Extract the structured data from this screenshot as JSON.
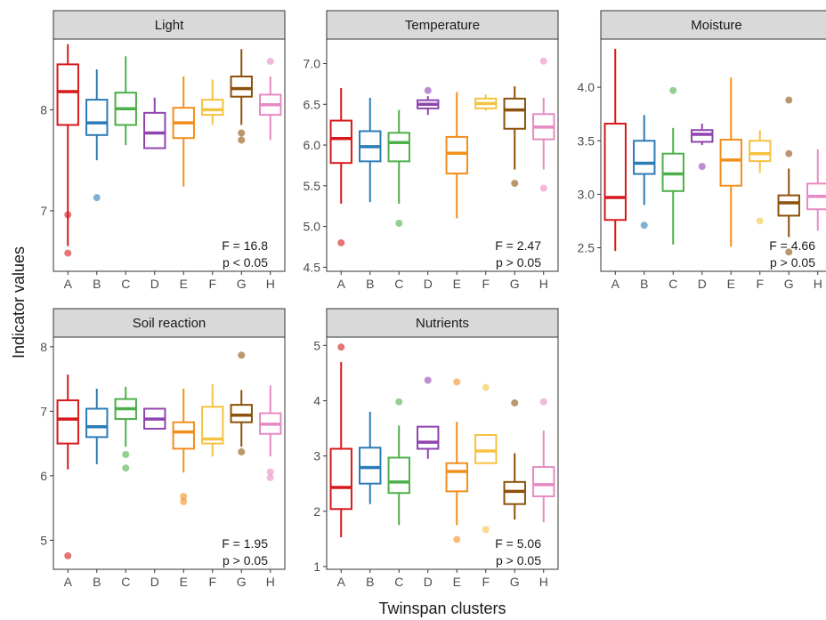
{
  "axis_titles": {
    "x": "Twinspan clusters",
    "y": "Indicator values"
  },
  "clusters": [
    "A",
    "B",
    "C",
    "D",
    "E",
    "F",
    "G",
    "H"
  ],
  "colors": [
    "#d7191c",
    "#2c7bb6",
    "#4daf4a",
    "#8e44ad",
    "#f28e1c",
    "#f5c342",
    "#8c510a",
    "#e78ac3"
  ],
  "chart_data": [
    {
      "type": "box",
      "title": "Light",
      "ylim": [
        6.4,
        8.7
      ],
      "yticks": [
        7,
        8
      ],
      "stat_line1": "F = 16.8",
      "stat_line2": "p < 0.05",
      "boxes": [
        {
          "q1": 7.85,
          "median": 8.18,
          "q3": 8.45,
          "wlo": 6.65,
          "whi": 8.65,
          "outliers": [
            6.96,
            6.58
          ]
        },
        {
          "q1": 7.75,
          "median": 7.87,
          "q3": 8.1,
          "wlo": 7.5,
          "whi": 8.4,
          "outliers": [
            7.13
          ]
        },
        {
          "q1": 7.85,
          "median": 8.01,
          "q3": 8.17,
          "wlo": 7.65,
          "whi": 8.53,
          "outliers": []
        },
        {
          "q1": 7.62,
          "median": 7.77,
          "q3": 7.97,
          "wlo": 7.62,
          "whi": 8.12,
          "outliers": []
        },
        {
          "q1": 7.72,
          "median": 7.87,
          "q3": 8.02,
          "wlo": 7.24,
          "whi": 8.33,
          "outliers": []
        },
        {
          "q1": 7.95,
          "median": 8.0,
          "q3": 8.1,
          "wlo": 7.85,
          "whi": 8.3,
          "outliers": []
        },
        {
          "q1": 8.13,
          "median": 8.21,
          "q3": 8.33,
          "wlo": 7.85,
          "whi": 8.6,
          "outliers": [
            7.77,
            7.7
          ]
        },
        {
          "q1": 7.95,
          "median": 8.05,
          "q3": 8.15,
          "wlo": 7.7,
          "whi": 8.33,
          "outliers": [
            8.48
          ]
        }
      ]
    },
    {
      "type": "box",
      "title": "Temperature",
      "ylim": [
        4.45,
        7.3
      ],
      "yticks": [
        4.5,
        5.0,
        5.5,
        6.0,
        6.5,
        7.0
      ],
      "stat_line1": "F = 2.47",
      "stat_line2": "p > 0.05",
      "boxes": [
        {
          "q1": 5.78,
          "median": 6.08,
          "q3": 6.3,
          "wlo": 5.28,
          "whi": 6.7,
          "outliers": [
            4.8
          ]
        },
        {
          "q1": 5.8,
          "median": 5.98,
          "q3": 6.17,
          "wlo": 5.3,
          "whi": 6.58,
          "outliers": []
        },
        {
          "q1": 5.8,
          "median": 6.03,
          "q3": 6.15,
          "wlo": 5.28,
          "whi": 6.43,
          "outliers": [
            5.04
          ]
        },
        {
          "q1": 6.45,
          "median": 6.5,
          "q3": 6.55,
          "wlo": 6.37,
          "whi": 6.6,
          "outliers": [
            6.67
          ]
        },
        {
          "q1": 5.65,
          "median": 5.9,
          "q3": 6.1,
          "wlo": 5.1,
          "whi": 6.65,
          "outliers": []
        },
        {
          "q1": 6.45,
          "median": 6.51,
          "q3": 6.57,
          "wlo": 6.42,
          "whi": 6.62,
          "outliers": []
        },
        {
          "q1": 6.2,
          "median": 6.43,
          "q3": 6.57,
          "wlo": 5.7,
          "whi": 6.72,
          "outliers": [
            5.53
          ]
        },
        {
          "q1": 6.07,
          "median": 6.22,
          "q3": 6.38,
          "wlo": 5.7,
          "whi": 6.58,
          "outliers": [
            7.03,
            5.47
          ]
        }
      ]
    },
    {
      "type": "box",
      "title": "Moisture",
      "ylim": [
        2.28,
        4.45
      ],
      "yticks": [
        2.5,
        3.0,
        3.5,
        4.0
      ],
      "stat_line1": "F = 4.66",
      "stat_line2": "p > 0.05",
      "boxes": [
        {
          "q1": 2.76,
          "median": 2.97,
          "q3": 3.66,
          "wlo": 2.47,
          "whi": 4.36,
          "outliers": []
        },
        {
          "q1": 3.19,
          "median": 3.29,
          "q3": 3.5,
          "wlo": 2.9,
          "whi": 3.74,
          "outliers": [
            2.71
          ]
        },
        {
          "q1": 3.03,
          "median": 3.19,
          "q3": 3.38,
          "wlo": 2.53,
          "whi": 3.62,
          "outliers": [
            3.97
          ]
        },
        {
          "q1": 3.49,
          "median": 3.56,
          "q3": 3.6,
          "wlo": 3.46,
          "whi": 3.66,
          "outliers": [
            3.26
          ]
        },
        {
          "q1": 3.08,
          "median": 3.32,
          "q3": 3.51,
          "wlo": 2.51,
          "whi": 4.09,
          "outliers": []
        },
        {
          "q1": 3.31,
          "median": 3.38,
          "q3": 3.5,
          "wlo": 3.2,
          "whi": 3.6,
          "outliers": [
            2.75
          ]
        },
        {
          "q1": 2.8,
          "median": 2.92,
          "q3": 2.99,
          "wlo": 2.6,
          "whi": 3.24,
          "outliers": [
            3.88,
            3.38,
            2.46
          ]
        },
        {
          "q1": 2.86,
          "median": 2.98,
          "q3": 3.1,
          "wlo": 2.66,
          "whi": 3.42,
          "outliers": []
        }
      ]
    },
    {
      "type": "box",
      "title": "Soil reaction",
      "ylim": [
        4.55,
        8.15
      ],
      "yticks": [
        5,
        6,
        7,
        8
      ],
      "stat_line1": "F = 1.95",
      "stat_line2": "p > 0.05",
      "boxes": [
        {
          "q1": 6.5,
          "median": 6.88,
          "q3": 7.17,
          "wlo": 6.1,
          "whi": 7.57,
          "outliers": [
            4.76
          ]
        },
        {
          "q1": 6.6,
          "median": 6.76,
          "q3": 7.04,
          "wlo": 6.18,
          "whi": 7.35,
          "outliers": []
        },
        {
          "q1": 6.88,
          "median": 7.04,
          "q3": 7.19,
          "wlo": 6.45,
          "whi": 7.38,
          "outliers": [
            6.33,
            6.12
          ]
        },
        {
          "q1": 6.73,
          "median": 6.88,
          "q3": 7.04,
          "wlo": 6.73,
          "whi": 7.04,
          "outliers": []
        },
        {
          "q1": 6.42,
          "median": 6.68,
          "q3": 6.83,
          "wlo": 6.05,
          "whi": 7.35,
          "outliers": [
            5.68,
            5.6
          ]
        },
        {
          "q1": 6.5,
          "median": 6.57,
          "q3": 7.07,
          "wlo": 6.3,
          "whi": 7.42,
          "outliers": []
        },
        {
          "q1": 6.83,
          "median": 6.94,
          "q3": 7.1,
          "wlo": 6.45,
          "whi": 7.33,
          "outliers": [
            7.87,
            6.37
          ]
        },
        {
          "q1": 6.65,
          "median": 6.8,
          "q3": 6.97,
          "wlo": 6.3,
          "whi": 7.4,
          "outliers": [
            6.06,
            5.97
          ]
        }
      ]
    },
    {
      "type": "box",
      "title": "Nutrients",
      "ylim": [
        0.95,
        5.15
      ],
      "yticks": [
        1,
        2,
        3,
        4,
        5
      ],
      "stat_line1": "F = 5.06",
      "stat_line2": "p > 0.05",
      "boxes": [
        {
          "q1": 2.04,
          "median": 2.43,
          "q3": 3.13,
          "wlo": 1.53,
          "whi": 4.7,
          "outliers": [
            4.97
          ]
        },
        {
          "q1": 2.5,
          "median": 2.79,
          "q3": 3.15,
          "wlo": 2.13,
          "whi": 3.8,
          "outliers": []
        },
        {
          "q1": 2.33,
          "median": 2.53,
          "q3": 2.97,
          "wlo": 1.75,
          "whi": 3.55,
          "outliers": [
            3.98
          ]
        },
        {
          "q1": 3.13,
          "median": 3.25,
          "q3": 3.53,
          "wlo": 2.95,
          "whi": 3.53,
          "outliers": [
            4.37
          ]
        },
        {
          "q1": 2.36,
          "median": 2.72,
          "q3": 2.87,
          "wlo": 1.75,
          "whi": 3.62,
          "outliers": [
            4.34,
            1.49
          ]
        },
        {
          "q1": 2.87,
          "median": 3.09,
          "q3": 3.38,
          "wlo": 2.87,
          "whi": 3.38,
          "outliers": [
            4.24,
            1.67
          ]
        },
        {
          "q1": 2.13,
          "median": 2.36,
          "q3": 2.53,
          "wlo": 1.85,
          "whi": 3.05,
          "outliers": [
            3.96
          ]
        },
        {
          "q1": 2.27,
          "median": 2.48,
          "q3": 2.8,
          "wlo": 1.8,
          "whi": 3.46,
          "outliers": [
            3.98
          ]
        }
      ]
    }
  ]
}
